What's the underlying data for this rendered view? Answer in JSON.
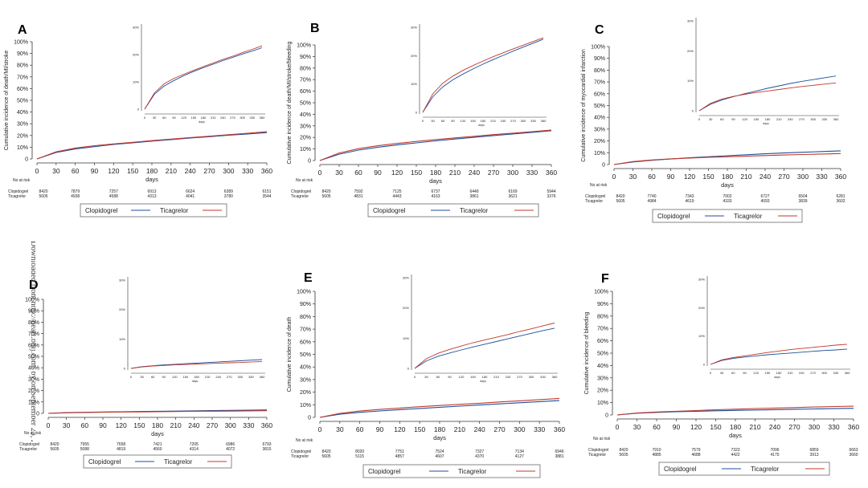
{
  "colors": {
    "clopidogrel": "#1f4e9c",
    "ticagrelor": "#c0392b",
    "axis": "#333333",
    "grid": "#888888"
  },
  "side_watermark": "Downloaded from http://heart.bmj.com/ by on September 23, 2020",
  "common": {
    "xlabel": "days",
    "x_ticks": [
      0,
      30,
      60,
      90,
      120,
      150,
      180,
      210,
      240,
      270,
      300,
      330,
      360
    ],
    "y_ticks": [
      "0",
      "10%",
      "20%",
      "30%",
      "40%",
      "50%",
      "60%",
      "70%",
      "80%",
      "90%",
      "100%"
    ],
    "risk_header": "No at risk",
    "risk_labels": [
      "Clopidogrel",
      "Ticagrelor"
    ],
    "legend": [
      "Clopidogrel",
      "Ticagrelor"
    ]
  },
  "chart_data": [
    {
      "type": "line",
      "panel": "A",
      "ylabel": "Cumulative incidence of death/MI/stroke",
      "xlim": [
        0,
        360
      ],
      "ylim": [
        0,
        100
      ],
      "x": [
        0,
        30,
        60,
        90,
        120,
        150,
        180,
        210,
        240,
        270,
        300,
        330,
        360
      ],
      "series": [
        {
          "name": "Clopidogrel",
          "values": [
            0,
            5.5,
            8.5,
            10.5,
            12.3,
            13.8,
            15.2,
            16.5,
            17.8,
            19.0,
            20.2,
            21.3,
            22.5
          ]
        },
        {
          "name": "Ticagrelor",
          "values": [
            0,
            6,
            9.3,
            11.3,
            12.8,
            14.2,
            15.6,
            16.9,
            18.2,
            19.4,
            20.7,
            21.9,
            23.2
          ]
        }
      ],
      "inset": {
        "y_ticks": [
          "0",
          "10%",
          "20%",
          "30%"
        ],
        "ylim": [
          0,
          30
        ]
      },
      "risk": {
        "x": [
          0,
          60,
          120,
          180,
          240,
          300,
          360
        ],
        "clopidogrel": [
          "8420",
          "7879",
          "7257",
          "6913",
          "6624",
          "6389",
          "6151"
        ],
        "ticagrelor": [
          "5605",
          "4938",
          "4588",
          "4313",
          "4041",
          "3780",
          "3544"
        ]
      }
    },
    {
      "type": "line",
      "panel": "B",
      "ylabel": "Cumulative incidence of death/MI/stroke/bleeding",
      "xlim": [
        0,
        360
      ],
      "ylim": [
        0,
        100
      ],
      "x": [
        0,
        30,
        60,
        90,
        120,
        150,
        180,
        210,
        240,
        270,
        300,
        330,
        360
      ],
      "series": [
        {
          "name": "Clopidogrel",
          "values": [
            0,
            5.5,
            9,
            11.5,
            13.5,
            15.3,
            17,
            18.6,
            20.1,
            21.6,
            23,
            24.4,
            25.8
          ]
        },
        {
          "name": "Ticagrelor",
          "values": [
            0,
            6.5,
            10.3,
            12.8,
            14.8,
            16.5,
            18.1,
            19.6,
            21,
            22.4,
            23.7,
            25,
            26.3
          ]
        }
      ],
      "inset": {
        "y_ticks": [
          "0",
          "10%",
          "20%",
          "30%"
        ],
        "ylim": [
          0,
          30
        ]
      },
      "risk": {
        "x": [
          0,
          60,
          120,
          180,
          240,
          300,
          360
        ],
        "clopidogrel": [
          "8420",
          "7592",
          "7125",
          "6737",
          "6449",
          "6169",
          "5944"
        ],
        "ticagrelor": [
          "5605",
          "4831",
          "4443",
          "4163",
          "3861",
          "3621",
          "3376"
        ]
      }
    },
    {
      "type": "line",
      "panel": "C",
      "ylabel": "Cumulative incidence of myocardial infarction",
      "xlim": [
        0,
        360
      ],
      "ylim": [
        0,
        100
      ],
      "x": [
        0,
        30,
        60,
        90,
        120,
        150,
        180,
        210,
        240,
        270,
        300,
        330,
        360
      ],
      "series": [
        {
          "name": "Clopidogrel",
          "values": [
            0,
            2.2,
            3.6,
            4.7,
            5.7,
            6.6,
            7.5,
            8.3,
            9.1,
            9.8,
            10.4,
            11,
            11.6
          ]
        },
        {
          "name": "Ticagrelor",
          "values": [
            0,
            2.5,
            3.9,
            4.8,
            5.5,
            6.1,
            6.6,
            7.1,
            7.6,
            8.1,
            8.5,
            8.9,
            9.3
          ]
        }
      ],
      "inset": {
        "y_ticks": [
          "0",
          "10%",
          "20%",
          "30%"
        ],
        "ylim": [
          0,
          30
        ]
      },
      "risk": {
        "x": [
          0,
          60,
          120,
          180,
          240,
          300,
          360
        ],
        "clopidogrel": [
          "8420",
          "7740",
          "7343",
          "7002",
          "6727",
          "6504",
          "6281"
        ],
        "ticagrelor": [
          "5605",
          "4984",
          "4619",
          "4333",
          "4093",
          "3839",
          "3602"
        ]
      }
    },
    {
      "type": "line",
      "panel": "D",
      "ylabel": "",
      "xlim": [
        0,
        360
      ],
      "ylim": [
        0,
        100
      ],
      "x": [
        0,
        30,
        60,
        90,
        120,
        150,
        180,
        210,
        240,
        270,
        300,
        330,
        360
      ],
      "series": [
        {
          "name": "Clopidogrel",
          "values": [
            0,
            0.6,
            0.9,
            1.2,
            1.4,
            1.6,
            1.8,
            2.0,
            2.2,
            2.4,
            2.6,
            2.8,
            3.0
          ]
        },
        {
          "name": "Ticagrelor",
          "values": [
            0,
            0.5,
            0.8,
            1.0,
            1.2,
            1.3,
            1.5,
            1.6,
            1.8,
            1.9,
            2.0,
            2.2,
            2.3
          ]
        }
      ],
      "inset": {
        "y_ticks": [
          "0",
          "10%",
          "20%",
          "30%"
        ],
        "ylim": [
          0,
          30
        ]
      },
      "risk": {
        "x": [
          0,
          60,
          120,
          180,
          240,
          300,
          360
        ],
        "clopidogrel": [
          "8420",
          "7955",
          "7658",
          "7421",
          "7205",
          "6986",
          "6793"
        ],
        "ticagrelor": [
          "5605",
          "5088",
          "4819",
          "4560",
          "4314",
          "4072",
          "3815"
        ]
      }
    },
    {
      "type": "line",
      "panel": "E",
      "ylabel": "Cumulative incidence of death",
      "xlim": [
        0,
        360
      ],
      "ylim": [
        0,
        100
      ],
      "x": [
        0,
        30,
        60,
        90,
        120,
        150,
        180,
        210,
        240,
        270,
        300,
        330,
        360
      ],
      "series": [
        {
          "name": "Clopidogrel",
          "values": [
            0,
            2.5,
            4,
            5.1,
            6.1,
            7.1,
            8,
            8.9,
            9.8,
            10.7,
            11.6,
            12.5,
            13.3
          ]
        },
        {
          "name": "Ticagrelor",
          "values": [
            0,
            3.2,
            5,
            6.3,
            7.4,
            8.5,
            9.4,
            10.3,
            11.2,
            12.2,
            13.1,
            14.1,
            15
          ]
        }
      ],
      "inset": {
        "y_ticks": [
          "0",
          "10%",
          "20%",
          "30%"
        ],
        "ylim": [
          0,
          30
        ]
      },
      "risk": {
        "x": [
          0,
          60,
          120,
          180,
          240,
          300,
          360
        ],
        "clopidogrel": [
          "8420",
          "8020",
          "7751",
          "7524",
          "7327",
          "7134",
          "6946"
        ],
        "ticagrelor": [
          "5605",
          "5115",
          "4857",
          "4607",
          "4370",
          "4127",
          "3881"
        ]
      }
    },
    {
      "type": "line",
      "panel": "F",
      "ylabel": "Cumulative incidence of bleeding",
      "xlim": [
        0,
        360
      ],
      "ylim": [
        0,
        100
      ],
      "x": [
        0,
        30,
        60,
        90,
        120,
        150,
        180,
        210,
        240,
        270,
        300,
        330,
        360
      ],
      "series": [
        {
          "name": "Clopidogrel",
          "values": [
            0,
            1.4,
            2.1,
            2.6,
            3,
            3.4,
            3.7,
            4,
            4.3,
            4.6,
            4.9,
            5.1,
            5.4
          ]
        },
        {
          "name": "Ticagrelor",
          "values": [
            0,
            1.6,
            2.4,
            3,
            3.6,
            4.2,
            4.7,
            5.2,
            5.6,
            6,
            6.4,
            6.8,
            7.1
          ]
        }
      ],
      "inset": {
        "y_ticks": [
          "0",
          "10%",
          "20%",
          "30%"
        ],
        "ylim": [
          0,
          30
        ]
      },
      "risk": {
        "x": [
          0,
          60,
          120,
          180,
          240,
          300,
          360
        ],
        "clopidogrel": [
          "8420",
          "7910",
          "7579",
          "7323",
          "7096",
          "6859",
          "6663"
        ],
        "ticagrelor": [
          "5605",
          "4885",
          "4688",
          "4422",
          "4175",
          "3913",
          "3660"
        ]
      }
    }
  ]
}
